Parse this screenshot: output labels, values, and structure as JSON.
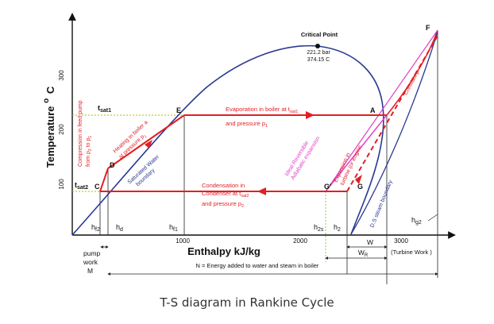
{
  "caption": "T-S diagram in Rankine Cycle",
  "axes": {
    "y_label": "Temperature",
    "y_degree": "o",
    "y_unit": "C",
    "y_ticks": [
      "100",
      "200",
      "300"
    ],
    "x_label": "Enthalpy kJ/kg",
    "x_ticks": [
      "1000",
      "2000",
      "3000"
    ]
  },
  "critical_point": {
    "title": "Critical Point",
    "pressure": "221.2 bar",
    "temperature": "374.15 C"
  },
  "points": [
    "A",
    "C",
    "D",
    "E",
    "F",
    "G",
    "G'"
  ],
  "t_labels": {
    "sat1": "sat1",
    "sat2": "sat2",
    "t": "t"
  },
  "h_labels": {
    "hf2": "f2",
    "hd": "d",
    "hf1": "f1",
    "h2s": "2s",
    "h2": "2",
    "hg2": "g2",
    "h": "h"
  },
  "annotations": {
    "evaporation_1": "Evaporation in boiler at t",
    "evaporation_1_sub": "sat1",
    "evaporation_2": "and pressure p",
    "evaporation_2_sub": "1",
    "condensation_1": "Condensation in",
    "condensation_2a": "Condenser at t",
    "condensation_2_sub": "sat2",
    "condensation_3": "and pressure p",
    "condensation_3_sub": "2",
    "compression_1": "Compression in feed pump",
    "compression_2": "from p",
    "compression_2_sub_a": "2",
    "compression_2_mid": " to p",
    "compression_2_sub_b": "1",
    "heating_1": "Heating in boiler a",
    "heating_2": "at pressure p",
    "heating_2_sub": "1",
    "saturated_water_1": "Saturated Water",
    "saturated_water_2": "boundary",
    "reversible_1": "Ideal Reversible",
    "reversible_2": "Adiabatic expansion",
    "expansion_1": "Expansion in",
    "expansion_2": "turbine (or engine",
    "ds_steam": "D.S steam boundary",
    "constant_p": "Constant p"
  },
  "bottom": {
    "pump_1": "pump",
    "pump_2": "work",
    "pump_3": "M",
    "w": "W",
    "wr": "W",
    "wr_sub": "R",
    "turbine_work": "(Turbine Work )",
    "energy_note": "N = Energy added to water and steam in boiler"
  },
  "colors": {
    "process_line": "#e31e24",
    "saturation_curve": "#2b3990",
    "isentropic": "#e040c8",
    "constant_pressure": "#e31e24",
    "dotted_guide": "#b5b800",
    "axis": "#111111"
  }
}
